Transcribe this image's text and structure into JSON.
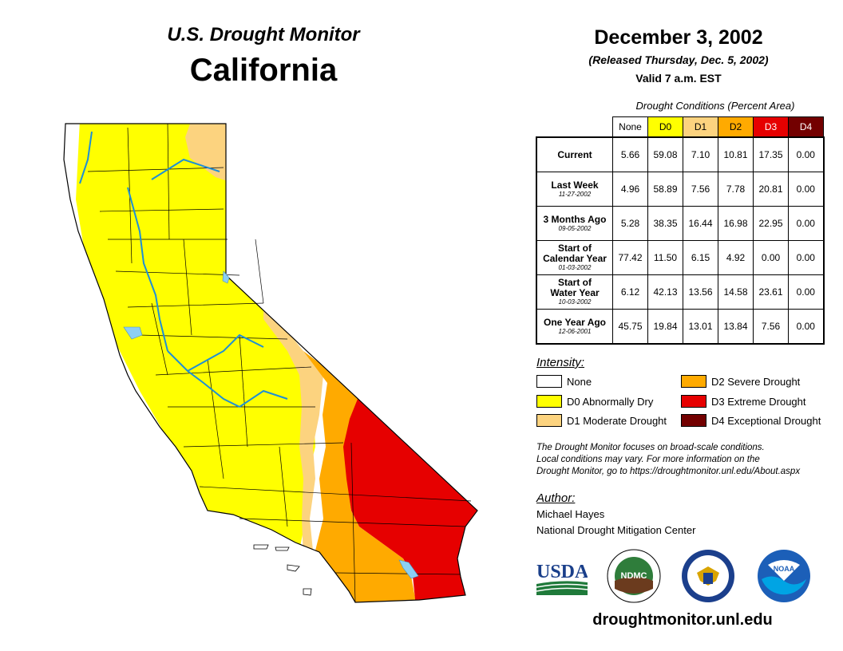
{
  "header": {
    "title": "U.S. Drought Monitor",
    "state": "California",
    "date": "December 3, 2002",
    "released": "(Released Thursday, Dec. 5, 2002)",
    "valid": "Valid 7 a.m. EST"
  },
  "table": {
    "caption": "Drought Conditions (Percent Area)",
    "columns": [
      {
        "label": "None",
        "color": "#ffffff",
        "text_color": "#000000"
      },
      {
        "label": "D0",
        "color": "#ffff00",
        "text_color": "#000000"
      },
      {
        "label": "D1",
        "color": "#fcd37f",
        "text_color": "#000000"
      },
      {
        "label": "D2",
        "color": "#ffaa00",
        "text_color": "#000000"
      },
      {
        "label": "D3",
        "color": "#e60000",
        "text_color": "#ffffff"
      },
      {
        "label": "D4",
        "color": "#730000",
        "text_color": "#ffffff"
      }
    ],
    "rows": [
      {
        "label": "Current",
        "label2": "",
        "date": "",
        "values": [
          "5.66",
          "59.08",
          "7.10",
          "10.81",
          "17.35",
          "0.00"
        ]
      },
      {
        "label": "Last Week",
        "label2": "",
        "date": "11-27-2002",
        "values": [
          "4.96",
          "58.89",
          "7.56",
          "7.78",
          "20.81",
          "0.00"
        ]
      },
      {
        "label": "3 Months Ago",
        "label2": "",
        "date": "09-05-2002",
        "values": [
          "5.28",
          "38.35",
          "16.44",
          "16.98",
          "22.95",
          "0.00"
        ]
      },
      {
        "label": "Start of",
        "label2": "Calendar Year",
        "date": "01-03-2002",
        "values": [
          "77.42",
          "11.50",
          "6.15",
          "4.92",
          "0.00",
          "0.00"
        ]
      },
      {
        "label": "Start of",
        "label2": "Water Year",
        "date": "10-03-2002",
        "values": [
          "6.12",
          "42.13",
          "13.56",
          "14.58",
          "23.61",
          "0.00"
        ]
      },
      {
        "label": "One Year Ago",
        "label2": "",
        "date": "12-06-2001",
        "values": [
          "45.75",
          "19.84",
          "13.01",
          "13.84",
          "7.56",
          "0.00"
        ]
      }
    ]
  },
  "legend": {
    "title": "Intensity:",
    "items": [
      {
        "label": "None",
        "color": "#ffffff"
      },
      {
        "label": "D0 Abnormally Dry",
        "color": "#ffff00"
      },
      {
        "label": "D1 Moderate Drought",
        "color": "#fcd37f"
      },
      {
        "label": "D2 Severe Drought",
        "color": "#ffaa00"
      },
      {
        "label": "D3 Extreme Drought",
        "color": "#e60000"
      },
      {
        "label": "D4 Exceptional Drought",
        "color": "#730000"
      }
    ]
  },
  "note": {
    "line1": "The Drought Monitor focuses on broad-scale conditions.",
    "line2": "Local conditions may vary. For more information on the",
    "line3": "Drought Monitor, go to https://droughtmonitor.unl.edu/About.aspx"
  },
  "author": {
    "title": "Author:",
    "name": "Michael Hayes",
    "org": "National Drought Mitigation Center"
  },
  "logos": {
    "usda": "USDA",
    "ndmc": "NDMC",
    "noaa": "NOAA"
  },
  "website": "droughtmonitor.unl.edu",
  "colors": {
    "none": "#ffffff",
    "d0": "#ffff00",
    "d1": "#fcd37f",
    "d2": "#ffaa00",
    "d3": "#e60000",
    "d4": "#730000",
    "water": "#8ccff2",
    "river": "#1e8fd6"
  }
}
